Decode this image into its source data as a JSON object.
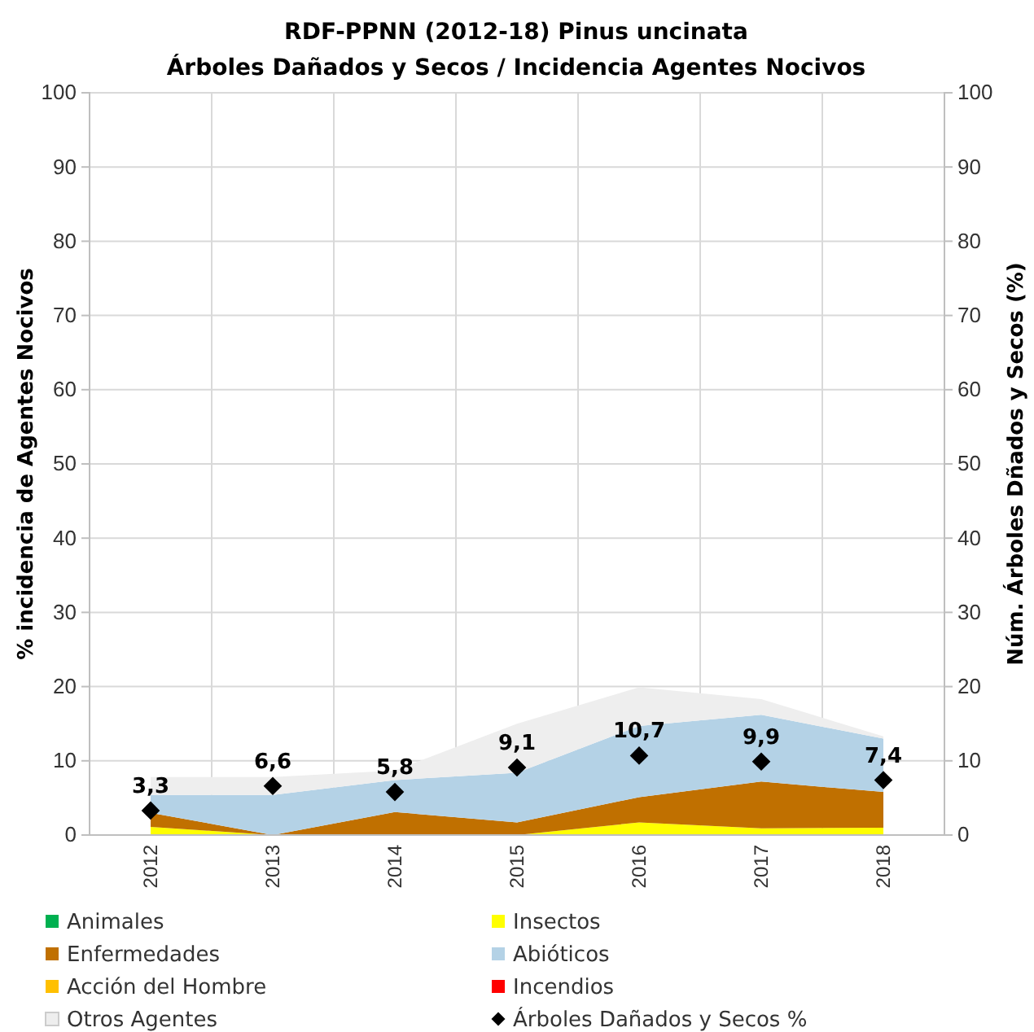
{
  "chart_data": {
    "type": "area",
    "stacked": true,
    "title": "RDF-PPNN (2012-18) Pinus uncinata",
    "subtitle": "Árboles Dañados y Secos / Incidencia Agentes Nocivos",
    "ylabel": "% incidencia de Agentes Nocivos",
    "y2label": "Núm. Árboles Dñados y Secos (%)",
    "categories": [
      "2012",
      "2013",
      "2014",
      "2015",
      "2016",
      "2017",
      "2018"
    ],
    "ylim": [
      0,
      100
    ],
    "yticks": [
      0,
      10,
      20,
      30,
      40,
      50,
      60,
      70,
      80,
      90,
      100
    ],
    "y2lim": [
      0,
      100
    ],
    "y2ticks": [
      0,
      10,
      20,
      30,
      40,
      50,
      60,
      70,
      80,
      90,
      100
    ],
    "grid": true,
    "legend": "bottom",
    "series": [
      {
        "name": "Animales",
        "color": "#00b050",
        "values": [
          null,
          null,
          null,
          null,
          null,
          null,
          null
        ]
      },
      {
        "name": "Insectos",
        "color": "#ffff00",
        "values": [
          1.1,
          0,
          0,
          0,
          1.7,
          0.9,
          1.0
        ]
      },
      {
        "name": "Enfermedades",
        "color": "#c07000",
        "values": [
          1.9,
          0,
          3.1,
          1.7,
          3.4,
          6.3,
          4.8
        ]
      },
      {
        "name": "Abióticos",
        "color": "#b4d2e6",
        "values": [
          2.4,
          5.4,
          4.3,
          6.7,
          9.6,
          9.0,
          7.2
        ]
      },
      {
        "name": "Acción del Hombre",
        "color": "#ffc000",
        "values": [
          null,
          null,
          null,
          null,
          null,
          null,
          null
        ]
      },
      {
        "name": "Incendios",
        "color": "#ff0000",
        "values": [
          null,
          null,
          null,
          null,
          null,
          null,
          null
        ]
      },
      {
        "name": "Otros Agentes",
        "color": "#eeeeee",
        "values": [
          2.4,
          2.4,
          1.3,
          6.6,
          5.2,
          2.1,
          0.3
        ]
      },
      {
        "name": "Árboles Dañados y Secos %",
        "type": "scatter",
        "axis": "y2",
        "marker": "diamond",
        "color": "#000000",
        "values": [
          3.3,
          6.6,
          5.8,
          9.1,
          10.7,
          9.9,
          7.4
        ],
        "value_labels": [
          "3,3",
          "6,6",
          "5,8",
          "9,1",
          "10,7",
          "9,9",
          "7,4"
        ]
      }
    ]
  }
}
